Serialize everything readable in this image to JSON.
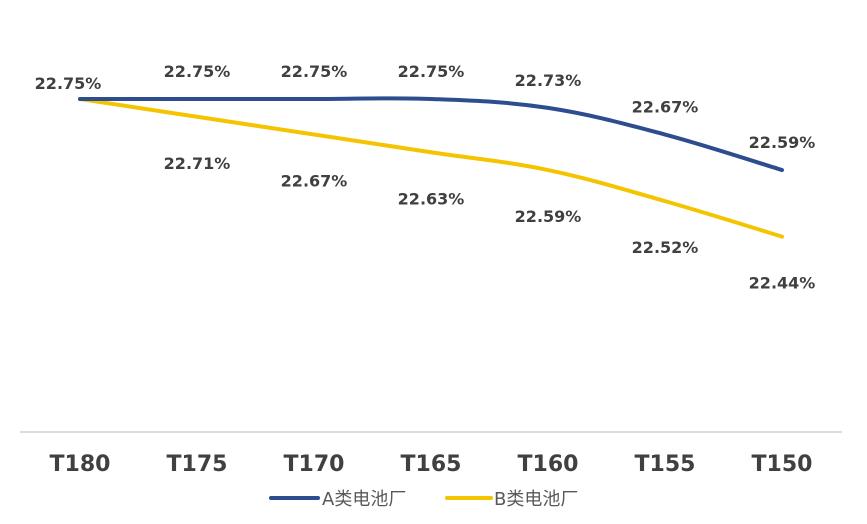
{
  "chart_data": {
    "type": "line",
    "title": "",
    "xlabel": "",
    "ylabel": "",
    "categories": [
      "T180",
      "T175",
      "T170",
      "T165",
      "T160",
      "T155",
      "T150"
    ],
    "series": [
      {
        "name": "A类电池厂",
        "color": "#2E4D8F",
        "values": [
          22.75,
          22.75,
          22.75,
          22.75,
          22.73,
          22.67,
          22.59
        ],
        "labels": [
          "22.75%",
          "22.75%",
          "22.75%",
          "22.75%",
          "22.73%",
          "22.67%",
          "22.59%"
        ]
      },
      {
        "name": "B类电池厂",
        "color": "#F5C400",
        "values": [
          22.75,
          22.71,
          22.67,
          22.63,
          22.59,
          22.52,
          22.44
        ],
        "labels": [
          "",
          "22.71%",
          "22.67%",
          "22.63%",
          "22.59%",
          "22.52%",
          "22.44%"
        ]
      }
    ],
    "ylim": [
      22.0,
      22.9
    ],
    "grid": false,
    "legend_position": "bottom"
  }
}
